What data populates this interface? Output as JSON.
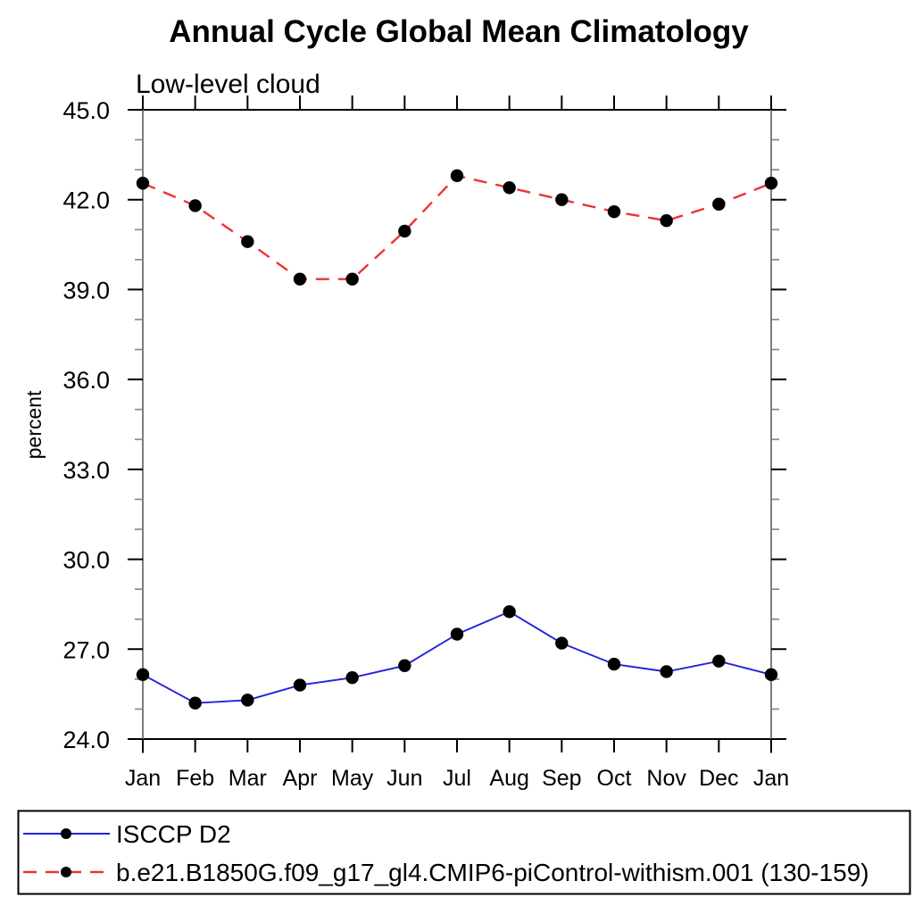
{
  "chart_data": {
    "type": "line",
    "title": "Annual Cycle Global Mean Climatology",
    "subtitle": "Low-level cloud",
    "ylabel": "percent",
    "xlabel": "",
    "categories": [
      "Jan",
      "Feb",
      "Mar",
      "Apr",
      "May",
      "Jun",
      "Jul",
      "Aug",
      "Sep",
      "Oct",
      "Nov",
      "Dec",
      "Jan"
    ],
    "ylim": [
      24.0,
      45.0
    ],
    "y_major_step": 3.0,
    "y_minor_step": 1.0,
    "y_tick_labels": [
      "24.0",
      "27.0",
      "30.0",
      "33.0",
      "36.0",
      "39.0",
      "42.0",
      "45.0"
    ],
    "grid": false,
    "legend_position": "bottom",
    "marker_color": "#000000",
    "axis_color": "#000000",
    "series": [
      {
        "name": "ISCCP D2",
        "color": "#2222dd",
        "line_style": "solid",
        "marker": "filled-circle",
        "values": [
          26.15,
          25.2,
          25.3,
          25.8,
          26.05,
          26.45,
          27.5,
          28.25,
          27.2,
          26.5,
          26.25,
          26.6,
          26.15
        ]
      },
      {
        "name": "b.e21.B1850G.f09_g17_gl4.CMIP6-piControl-withism.001 (130-159)",
        "color": "#ee3333",
        "line_style": "dashed",
        "marker": "filled-circle",
        "values": [
          42.55,
          41.8,
          40.6,
          39.35,
          39.35,
          40.95,
          42.8,
          42.4,
          42.0,
          41.6,
          41.3,
          41.85,
          42.55
        ]
      }
    ]
  }
}
